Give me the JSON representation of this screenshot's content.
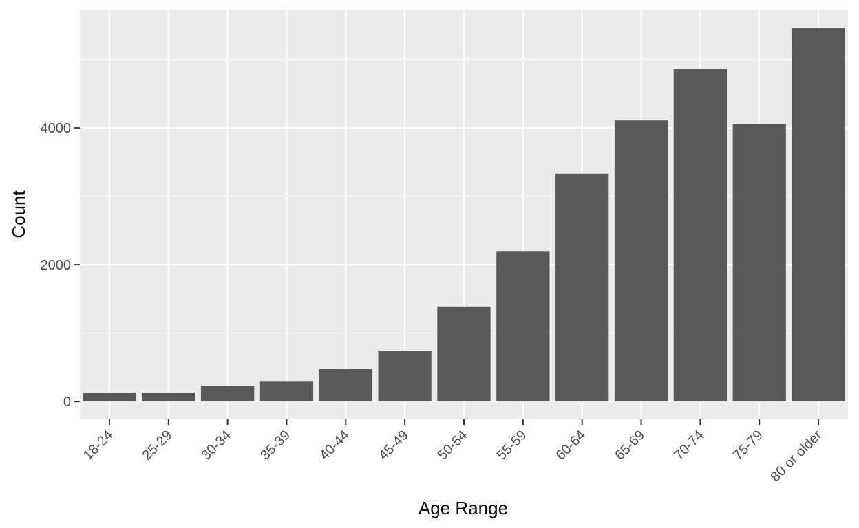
{
  "chart_data": {
    "type": "bar",
    "xlabel": "Age Range",
    "ylabel": "Count",
    "categories": [
      "18-24",
      "25-29",
      "30-34",
      "35-39",
      "40-44",
      "45-49",
      "50-54",
      "55-59",
      "60-64",
      "65-69",
      "70-74",
      "75-79",
      "80 or older"
    ],
    "values": [
      130,
      130,
      230,
      300,
      480,
      740,
      1390,
      2200,
      3330,
      4110,
      4860,
      4060,
      5460
    ],
    "ylim": [
      -260,
      5730
    ],
    "yticks": [
      0,
      2000,
      4000
    ],
    "ytick_labels": [
      "0",
      "2000",
      "4000"
    ],
    "minor_yticks": [
      1000,
      3000,
      5000
    ],
    "grid": true,
    "colors": {
      "bar": "#595959",
      "panel": "#ebebeb",
      "grid": "#ffffff",
      "tick_text": "#4d4d4d",
      "title_text": "#000000"
    }
  }
}
